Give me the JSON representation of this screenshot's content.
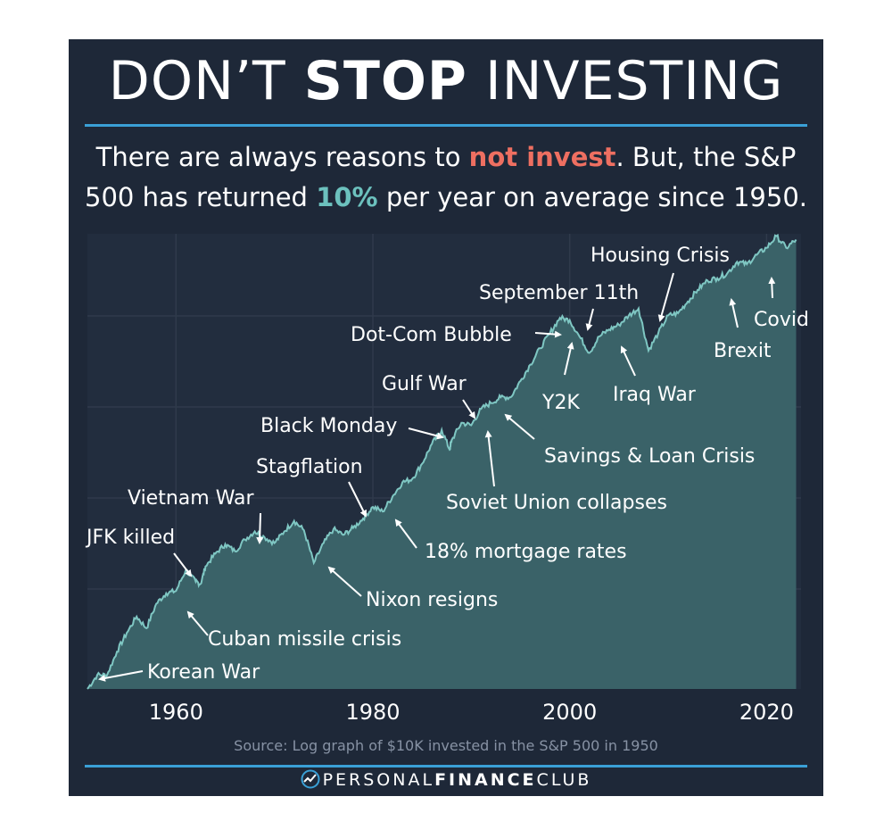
{
  "header": {
    "title_part1": "DON’T ",
    "title_bold": "STOP",
    "title_part2": " INVESTING",
    "subtitle_line1_a": "There are always reasons to ",
    "subtitle_line1_red": "not invest",
    "subtitle_line1_b": ". But, the S&P",
    "subtitle_line2_a": "500 has returned ",
    "subtitle_line2_teal": "10%",
    "subtitle_line2_b": " per year on average since 1950."
  },
  "footer": {
    "source": "Source: Log graph of $10K invested in the S&P 500 in 1950",
    "brand_light1": "PERSONAL",
    "brand_bold": "FINANCE",
    "brand_light2": "CLUB",
    "brand_icon": "chart-line-icon"
  },
  "colors": {
    "background": "#1e2838",
    "area_fill": "#3a6268",
    "line": "#7fc7c3",
    "grid": "#2f3a4b",
    "accent_blue": "#3aa0d6",
    "accent_red": "#ee6f61",
    "accent_teal": "#6cc1be"
  },
  "chart_data": {
    "type": "area",
    "scale": "log",
    "title": "",
    "xlabel": "",
    "ylabel": "",
    "xlim": [
      1951,
      2023.5
    ],
    "ylim": [
      4.2,
      8.1
    ],
    "x_ticks": [
      1960,
      1980,
      2000,
      2020
    ],
    "grid": true,
    "series": [
      {
        "x": [
          1951,
          1952,
          1953,
          1954,
          1955,
          1956,
          1957,
          1958,
          1959,
          1960,
          1961,
          1962,
          1962.5,
          1963,
          1964,
          1965,
          1966,
          1967,
          1968,
          1969,
          1970,
          1971,
          1972,
          1973,
          1974,
          1975,
          1976,
          1977,
          1978,
          1979,
          1980,
          1981,
          1982,
          1983,
          1984,
          1985,
          1986,
          1987,
          1987.8,
          1988,
          1989,
          1990,
          1991,
          1992,
          1993,
          1994,
          1995,
          1996,
          1997,
          1998,
          1999,
          2000,
          2001,
          2002,
          2003,
          2004,
          2005,
          2006,
          2007,
          2008,
          2009,
          2010,
          2011,
          2012,
          2013,
          2014,
          2015,
          2016,
          2017,
          2018,
          2019,
          2020,
          2021,
          2022,
          2023
        ],
        "values": [
          4.2,
          4.32,
          4.32,
          4.52,
          4.68,
          4.82,
          4.72,
          4.93,
          5.02,
          5.04,
          5.22,
          5.12,
          5.1,
          5.25,
          5.36,
          5.44,
          5.38,
          5.48,
          5.55,
          5.5,
          5.45,
          5.55,
          5.64,
          5.56,
          5.28,
          5.45,
          5.57,
          5.52,
          5.58,
          5.66,
          5.76,
          5.72,
          5.85,
          5.97,
          6.0,
          6.13,
          6.3,
          6.42,
          6.25,
          6.33,
          6.48,
          6.46,
          6.6,
          6.65,
          6.7,
          6.7,
          6.84,
          6.98,
          7.12,
          7.25,
          7.38,
          7.36,
          7.22,
          7.08,
          7.22,
          7.28,
          7.32,
          7.4,
          7.46,
          7.1,
          7.25,
          7.4,
          7.42,
          7.52,
          7.62,
          7.7,
          7.72,
          7.76,
          7.86,
          7.84,
          7.92,
          7.98,
          8.08,
          7.98,
          8.05
        ]
      }
    ],
    "annotations": [
      {
        "label": "Korean War",
        "year": 1952
      },
      {
        "label": "Cuban missile crisis",
        "year": 1962
      },
      {
        "label": "JFK killed",
        "year": 1963.5
      },
      {
        "label": "Vietnam War",
        "year": 1968.5
      },
      {
        "label": "Nixon resigns",
        "year": 1974.5
      },
      {
        "label": "Stagflation",
        "year": 1978.8
      },
      {
        "label": "18% mortgage rates",
        "year": 1982.2
      },
      {
        "label": "Black Monday",
        "year": 1987.5
      },
      {
        "label": "Gulf War",
        "year": 1990
      },
      {
        "label": "Soviet Union collapses",
        "year": 1991.5
      },
      {
        "label": "Savings & Loan Crisis",
        "year": 1993
      },
      {
        "label": "Dot-Com Bubble",
        "year": 2000
      },
      {
        "label": "Y2K",
        "year": 2000
      },
      {
        "label": "September 11th",
        "year": 2001.8
      },
      {
        "label": "Iraq War",
        "year": 2003.5
      },
      {
        "label": "Housing Crisis",
        "year": 2008.8
      },
      {
        "label": "Brexit",
        "year": 2016
      },
      {
        "label": "Covid",
        "year": 2020.2
      }
    ]
  }
}
